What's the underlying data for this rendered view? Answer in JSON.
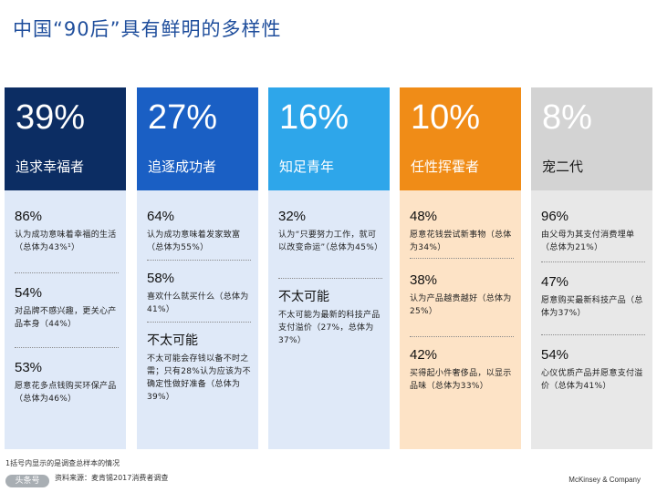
{
  "page": {
    "title": "中国“90后”具有鲜明的多样性"
  },
  "segments": [
    {
      "share": "39%",
      "name": "追求幸福者",
      "header_color": "#0c2d63",
      "body_color": "#dfe9f8",
      "stats": [
        {
          "value": "86%",
          "text": "认为成功意味着幸福的生活（总体为43%¹）"
        },
        {
          "value": "54%",
          "text": "对品牌不感兴趣，更关心产品本身（44%）"
        },
        {
          "value": "53%",
          "text": "愿意花多点钱购买环保产品（总体为46%）"
        }
      ]
    },
    {
      "share": "27%",
      "name": "追逐成功者",
      "header_color": "#1a5fc4",
      "body_color": "#dfe9f8",
      "stats": [
        {
          "value": "64%",
          "text": "认为成功意味着发家致富（总体为55%）"
        },
        {
          "value": "58%",
          "text": "喜欢什么就买什么（总体为41%）"
        },
        {
          "value": "不太可能",
          "text": "不太可能会存钱以备不时之需；只有28%认为应该为不确定性做好准备（总体为39%）"
        }
      ]
    },
    {
      "share": "16%",
      "name": "知足青年",
      "header_color": "#2ea6ea",
      "body_color": "#dfe9f8",
      "stats": [
        {
          "value": "32%",
          "text": "认为“只要努力工作，就可以改变命运”（总体为45%）"
        },
        {
          "value": "不太可能",
          "text": "不太可能为最新的科技产品支付溢价（27%，总体为37%）"
        }
      ]
    },
    {
      "share": "10%",
      "name": "任性挥霍者",
      "header_color": "#f08c17",
      "body_color": "#fde3c6",
      "stats": [
        {
          "value": "48%",
          "text": "愿意花钱尝试新事物（总体为34%）"
        },
        {
          "value": "38%",
          "text": "认为产品越贵越好（总体为25%）"
        },
        {
          "value": "42%",
          "text": "买得起小件奢侈品，以显示品味（总体为33%）"
        }
      ]
    },
    {
      "share": "8%",
      "name": "宠二代",
      "header_color": "#d3d3d3",
      "body_color": "#e8e8e8",
      "stats": [
        {
          "value": "96%",
          "text": "由父母为其支付消费埋单（总体为21%）"
        },
        {
          "value": "47%",
          "text": "愿意购买最新科技产品（总体为37%）"
        },
        {
          "value": "54%",
          "text": "心仪优质产品并愿意支付溢价（总体为41%）"
        }
      ]
    }
  ],
  "footer": {
    "note": "1括号内显示的是调查总样本的情况",
    "source": "资料来源：麦肯锡2017消费者调查",
    "logo": "头条号",
    "brand": "McKinsey & Company"
  }
}
